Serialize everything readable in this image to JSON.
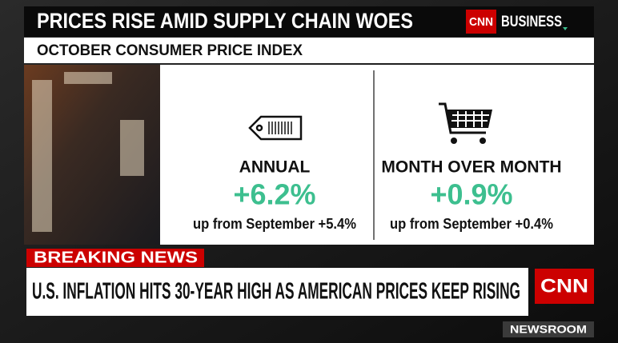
{
  "header": {
    "title": "PRICES RISE AMID SUPPLY CHAIN WOES",
    "brand": "CNN",
    "brand_section": "BUSINESS",
    "subtitle": "OCTOBER CONSUMER PRICE INDEX"
  },
  "panels": [
    {
      "label": "ANNUAL",
      "value": "+6.2%",
      "note": "up from September +5.4%"
    },
    {
      "label": "MONTH OVER MONTH",
      "value": "+0.9%",
      "note": "up from September +0.4%"
    }
  ],
  "ticker": {
    "tag": "BREAKING NEWS",
    "headline": "U.S. INFLATION HITS 30-YEAR HIGH AS AMERICAN PRICES KEEP RISING",
    "logo": "CNN",
    "show": "NEWSROOM"
  }
}
